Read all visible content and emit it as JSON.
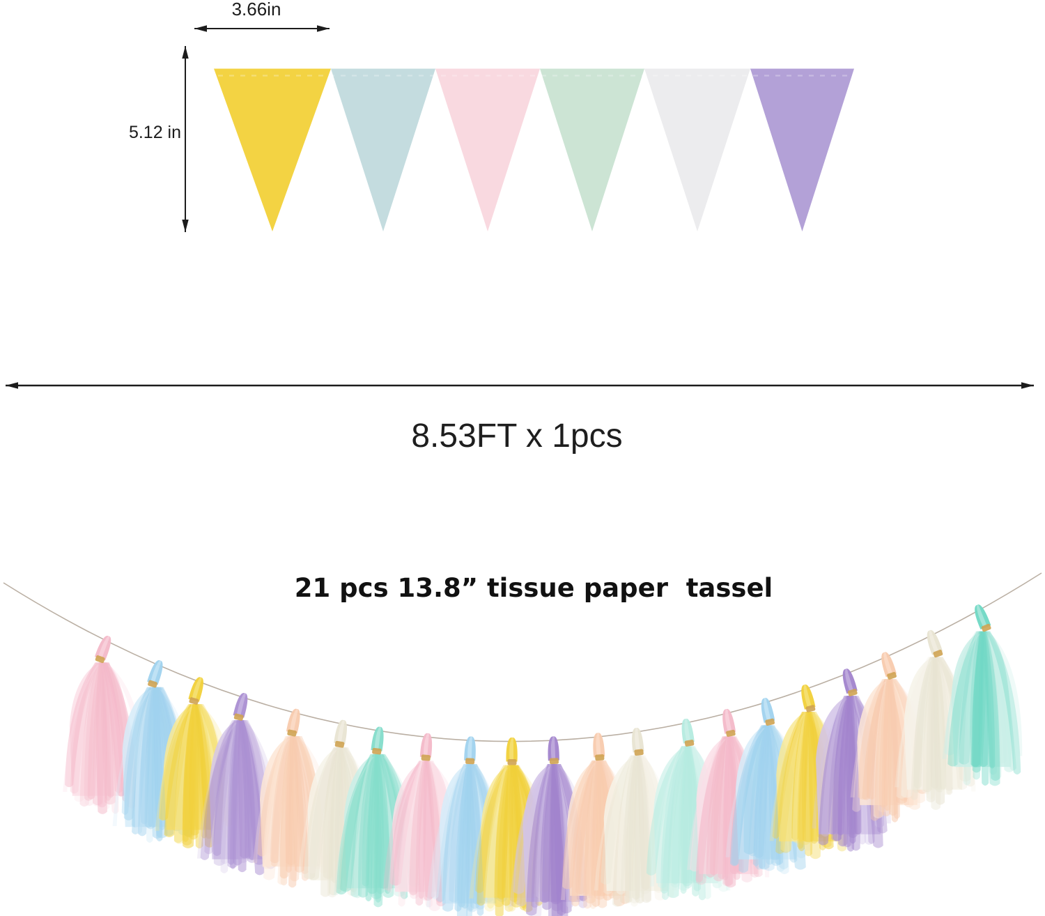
{
  "page": {
    "background": "#ffffff"
  },
  "pennant": {
    "width_label": "3.66in",
    "height_label": "5.12 in",
    "flag_count": 6,
    "flags": [
      {
        "name": "yellow",
        "color": "#f3d343"
      },
      {
        "name": "blue",
        "color": "#c4dcdf"
      },
      {
        "name": "pink",
        "color": "#f9d9e0"
      },
      {
        "name": "mint",
        "color": "#cce4d4"
      },
      {
        "name": "white",
        "color": "#ececee"
      },
      {
        "name": "lavender",
        "color": "#b3a1d7"
      }
    ],
    "stitch_color": "#ffffff"
  },
  "length_annotation": {
    "label": "8.53FT x 1pcs",
    "arrow_color": "#1c1c1c"
  },
  "garland": {
    "label": "21 pcs 13.8” tissue paper  tassel",
    "tassel_count": 21,
    "string_color": "#b1a295",
    "ring_color": "#cfa352",
    "palette": {
      "pink": {
        "base": "#f4b9c9",
        "lite": "#fbdfe7"
      },
      "blue": {
        "base": "#a0d2ee",
        "lite": "#d6ecf9"
      },
      "yellow": {
        "base": "#f1d03a",
        "lite": "#f8e996"
      },
      "purple": {
        "base": "#a284cd",
        "lite": "#d2c3e8"
      },
      "peach": {
        "base": "#f8cbae",
        "lite": "#fde6d6"
      },
      "white": {
        "base": "#e8e4d2",
        "lite": "#f6f3e9"
      },
      "mint": {
        "base": "#84ddcb",
        "lite": "#c9efe7"
      }
    },
    "sequence": [
      "pink",
      "blue",
      "yellow",
      "purple",
      "peach",
      "white",
      "mint",
      "pink",
      "blue",
      "yellow",
      "purple",
      "peach",
      "white",
      "mint",
      "pink",
      "blue",
      "yellow",
      "purple",
      "peach",
      "white",
      "mint"
    ]
  }
}
